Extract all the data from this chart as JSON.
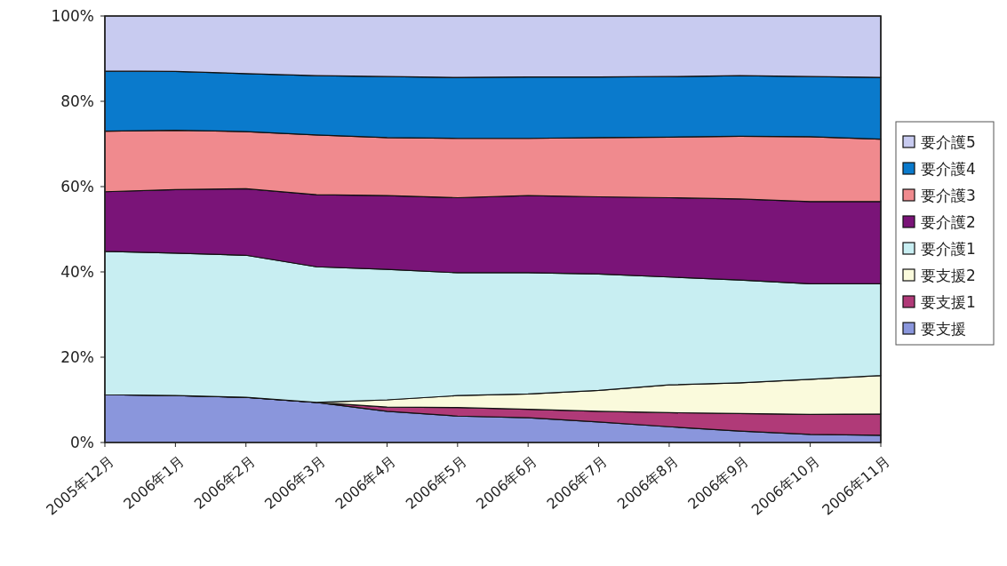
{
  "chart_data": {
    "type": "area",
    "stacked": true,
    "categories": [
      "2005年12月",
      "2006年1月",
      "2006年2月",
      "2006年3月",
      "2006年4月",
      "2006年5月",
      "2006年6月",
      "2006年7月",
      "2006年8月",
      "2006年9月",
      "2006年10月",
      "2006年11月"
    ],
    "ylim": [
      0,
      100
    ],
    "yticks": [
      {
        "value": 0,
        "label": "0%"
      },
      {
        "value": 20,
        "label": "20%"
      },
      {
        "value": 40,
        "label": "40%"
      },
      {
        "value": 60,
        "label": "60%"
      },
      {
        "value": 80,
        "label": "80%"
      },
      {
        "value": 100,
        "label": "100%"
      }
    ],
    "grid": false,
    "legend": "right",
    "series": [
      {
        "name": "要支援",
        "color": "#8a96dc",
        "values": [
          11.2,
          11.0,
          10.6,
          9.4,
          7.3,
          6.2,
          5.8,
          4.8,
          3.7,
          2.7,
          1.9,
          1.7
        ]
      },
      {
        "name": "要支援1",
        "color": "#b03a78",
        "values": [
          0,
          0,
          0,
          0,
          1.0,
          2.0,
          2.0,
          2.5,
          3.3,
          4.1,
          4.7,
          5.0
        ]
      },
      {
        "name": "要支援2",
        "color": "#fafadc",
        "values": [
          0,
          0,
          0,
          0,
          1.7,
          2.8,
          3.6,
          4.9,
          6.5,
          7.2,
          8.2,
          9.0
        ]
      },
      {
        "name": "要介護1",
        "color": "#c8eef2",
        "values": [
          33.6,
          33.4,
          33.3,
          31.8,
          30.6,
          28.8,
          28.4,
          27.3,
          25.3,
          24.1,
          22.4,
          21.5
        ]
      },
      {
        "name": "要介護2",
        "color": "#7a1478",
        "values": [
          14.0,
          14.9,
          15.6,
          16.9,
          17.3,
          17.6,
          18.1,
          18.1,
          18.6,
          19.0,
          19.3,
          19.3
        ]
      },
      {
        "name": "要介護3",
        "color": "#f08a8e",
        "values": [
          14.2,
          13.9,
          13.4,
          14.0,
          13.6,
          13.9,
          13.4,
          13.9,
          14.2,
          14.7,
          15.2,
          14.6
        ]
      },
      {
        "name": "要介護4",
        "color": "#0a7acc",
        "values": [
          14.1,
          13.8,
          13.6,
          13.9,
          14.3,
          14.3,
          14.4,
          14.2,
          14.2,
          14.2,
          14.1,
          14.5
        ]
      },
      {
        "name": "要介護5",
        "color": "#c8cbf0",
        "values": [
          12.9,
          13.0,
          13.5,
          14.0,
          14.2,
          14.4,
          14.3,
          14.3,
          14.2,
          14.0,
          14.2,
          14.4
        ]
      }
    ]
  }
}
